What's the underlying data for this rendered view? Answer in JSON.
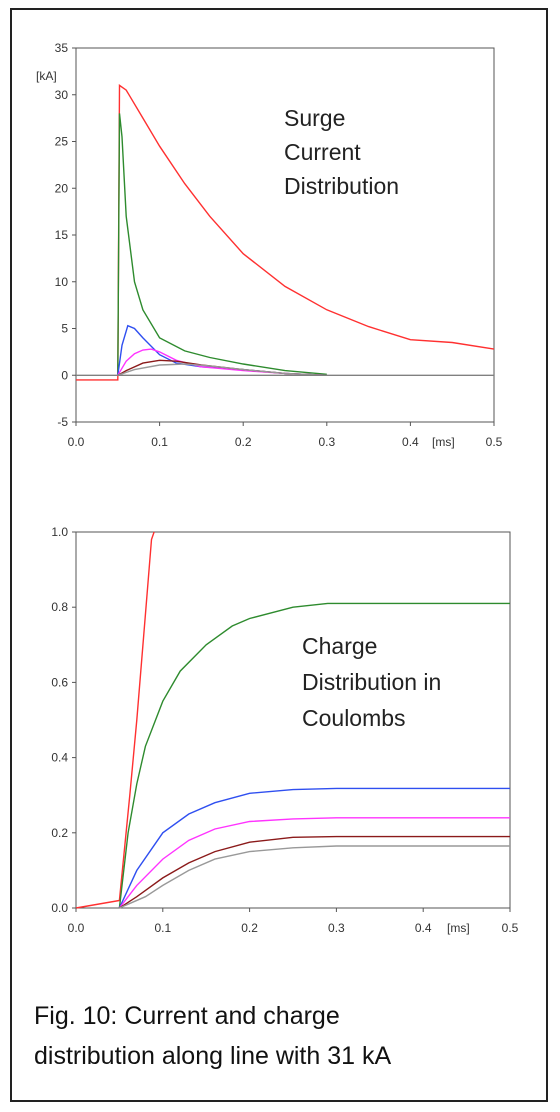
{
  "chart_data": [
    {
      "type": "line",
      "title": "",
      "annotation": [
        "Surge",
        "Current",
        "Distribution"
      ],
      "xlabel": "",
      "ylabel": "",
      "y_unit_label": "[kA]",
      "x_unit_label": "[ms]",
      "xlim": [
        0,
        0.5
      ],
      "ylim": [
        -5,
        35
      ],
      "x_ticks": [
        "0.0",
        "0.1",
        "0.2",
        "0.3",
        "0.4",
        "0.5"
      ],
      "y_ticks": [
        "-5",
        "0",
        "5",
        "10",
        "15",
        "20",
        "25",
        "30",
        "35"
      ],
      "grid": false,
      "series": [
        {
          "color": "#ff3030",
          "x": [
            0,
            0.05,
            0.052,
            0.06,
            0.08,
            0.1,
            0.13,
            0.16,
            0.2,
            0.25,
            0.3,
            0.35,
            0.4,
            0.45,
            0.5
          ],
          "y": [
            -0.5,
            -0.5,
            31,
            30.5,
            27.5,
            24.5,
            20.5,
            17,
            13,
            9.5,
            7,
            5.2,
            3.8,
            3.5,
            2.8
          ]
        },
        {
          "color": "#2e8b2e",
          "x": [
            0.05,
            0.052,
            0.055,
            0.06,
            0.07,
            0.08,
            0.1,
            0.13,
            0.16,
            0.2,
            0.25,
            0.3
          ],
          "y": [
            0,
            28,
            25.5,
            17,
            10,
            7,
            4,
            2.6,
            1.9,
            1.2,
            0.5,
            0.1
          ]
        },
        {
          "color": "#2f4ff0",
          "x": [
            0.05,
            0.055,
            0.062,
            0.07,
            0.08,
            0.1,
            0.12,
            0.15,
            0.2,
            0.25,
            0.3
          ],
          "y": [
            0,
            3.2,
            5.3,
            5.0,
            4.0,
            2.2,
            1.3,
            0.9,
            0.6,
            0.2,
            0.0
          ]
        },
        {
          "color": "#ff33ff",
          "x": [
            0.05,
            0.06,
            0.07,
            0.08,
            0.09,
            0.1,
            0.12,
            0.15,
            0.2,
            0.25,
            0.3
          ],
          "y": [
            0,
            1.5,
            2.3,
            2.7,
            2.8,
            2.5,
            1.6,
            0.9,
            0.5,
            0.2,
            0.0
          ]
        },
        {
          "color": "#8b1a1a",
          "x": [
            0.05,
            0.06,
            0.08,
            0.1,
            0.12,
            0.15,
            0.2,
            0.25,
            0.3
          ],
          "y": [
            0,
            0.5,
            1.3,
            1.6,
            1.5,
            1.1,
            0.6,
            0.2,
            0.0
          ]
        },
        {
          "color": "#999999",
          "x": [
            0.05,
            0.07,
            0.1,
            0.13,
            0.16,
            0.2,
            0.25,
            0.3
          ],
          "y": [
            0,
            0.6,
            1.1,
            1.2,
            1.0,
            0.6,
            0.2,
            0.0
          ]
        },
        {
          "color": "#808080",
          "x": [
            0,
            0.5
          ],
          "y": [
            0,
            0
          ]
        }
      ]
    },
    {
      "type": "line",
      "title": "",
      "annotation": [
        "Charge",
        "Distribution in",
        "Coulombs"
      ],
      "xlabel": "",
      "ylabel": "",
      "x_unit_label": "[ms]",
      "xlim": [
        0,
        0.5
      ],
      "ylim": [
        0,
        1.0
      ],
      "x_ticks": [
        "0.0",
        "0.1",
        "0.2",
        "0.3",
        "0.4",
        "0.5"
      ],
      "y_ticks": [
        "0.0",
        "0.2",
        "0.4",
        "0.6",
        "0.8",
        "1.0"
      ],
      "grid": false,
      "series": [
        {
          "color": "#ff3030",
          "x": [
            0,
            0.05,
            0.062,
            0.07,
            0.08,
            0.087,
            0.09
          ],
          "y": [
            0,
            0.02,
            0.3,
            0.5,
            0.78,
            0.98,
            1.0
          ]
        },
        {
          "color": "#2e8b2e",
          "x": [
            0.05,
            0.06,
            0.07,
            0.08,
            0.1,
            0.12,
            0.15,
            0.18,
            0.2,
            0.25,
            0.29,
            0.3,
            0.4,
            0.5
          ],
          "y": [
            0,
            0.2,
            0.33,
            0.43,
            0.55,
            0.63,
            0.7,
            0.75,
            0.77,
            0.8,
            0.81,
            0.81,
            0.81,
            0.81
          ]
        },
        {
          "color": "#2f4ff0",
          "x": [
            0.05,
            0.07,
            0.1,
            0.13,
            0.16,
            0.2,
            0.25,
            0.3,
            0.4,
            0.5
          ],
          "y": [
            0,
            0.1,
            0.2,
            0.25,
            0.28,
            0.305,
            0.315,
            0.318,
            0.318,
            0.318
          ]
        },
        {
          "color": "#ff33ff",
          "x": [
            0.05,
            0.07,
            0.1,
            0.13,
            0.16,
            0.2,
            0.25,
            0.3,
            0.4,
            0.5
          ],
          "y": [
            0,
            0.06,
            0.13,
            0.18,
            0.21,
            0.23,
            0.237,
            0.24,
            0.24,
            0.24
          ]
        },
        {
          "color": "#8b1a1a",
          "x": [
            0.05,
            0.07,
            0.1,
            0.13,
            0.16,
            0.2,
            0.25,
            0.3,
            0.4,
            0.5
          ],
          "y": [
            0,
            0.03,
            0.08,
            0.12,
            0.15,
            0.175,
            0.188,
            0.19,
            0.19,
            0.19
          ]
        },
        {
          "color": "#999999",
          "x": [
            0.05,
            0.08,
            0.1,
            0.13,
            0.16,
            0.2,
            0.25,
            0.3,
            0.4,
            0.5
          ],
          "y": [
            0,
            0.03,
            0.06,
            0.1,
            0.13,
            0.15,
            0.16,
            0.165,
            0.165,
            0.165
          ]
        }
      ]
    }
  ],
  "caption": {
    "line1": "Fig. 10: Current and charge",
    "line2": "distribution along line with 31 kA"
  }
}
